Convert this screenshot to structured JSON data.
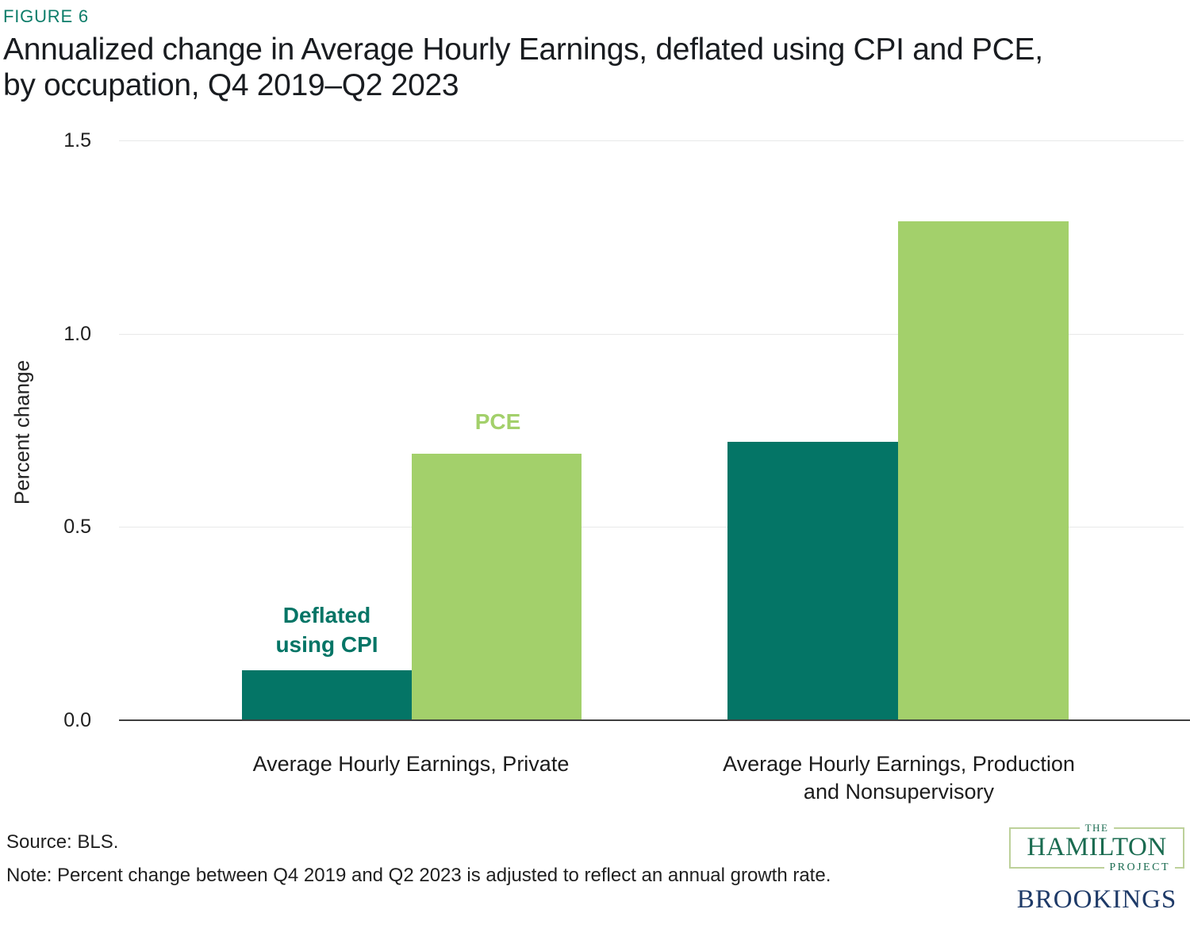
{
  "figure": {
    "label": "FIGURE 6",
    "title_line1": "Annualized change in Average Hourly Earnings, deflated using CPI and PCE,",
    "title_line2": "by occupation, Q4 2019–Q2 2023"
  },
  "chart_data": {
    "type": "bar",
    "title": "Annualized change in Average Hourly Earnings, deflated using CPI and PCE, by occupation, Q4 2019–Q2 2023",
    "categories": [
      "Average Hourly Earnings, Private",
      "Average Hourly Earnings, Production and Nonsupervisory"
    ],
    "series": [
      {
        "name": "Deflated using CPI",
        "color": "#047566",
        "values": [
          0.13,
          0.72
        ]
      },
      {
        "name": "PCE",
        "color": "#a3d06b",
        "values": [
          0.69,
          1.29
        ]
      }
    ],
    "xlabel": "",
    "ylabel": "Percent change",
    "ylim": [
      0,
      1.5
    ],
    "yticks": [
      0,
      0.5,
      1.0,
      1.5
    ],
    "ytick_labels": [
      "0.0",
      "0.5",
      "1.0",
      "1.5"
    ],
    "grid": true,
    "legend_position": "inline annotations above bars"
  },
  "annotations": {
    "cpi": "Deflated using CPI",
    "pce": "PCE"
  },
  "footer": {
    "source": "Source: BLS.",
    "note": "Note: Percent change between Q4 2019 and Q2 2023 is adjusted to reflect an annual growth rate."
  },
  "logos": {
    "hamilton_the": "THE",
    "hamilton_name": "HAMILTON",
    "hamilton_project": "PROJECT",
    "brookings": "BROOKINGS"
  }
}
